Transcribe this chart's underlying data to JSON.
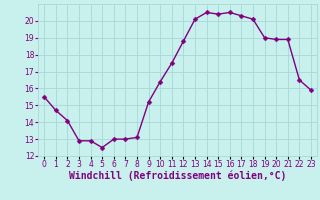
{
  "x": [
    0,
    1,
    2,
    3,
    4,
    5,
    6,
    7,
    8,
    9,
    10,
    11,
    12,
    13,
    14,
    15,
    16,
    17,
    18,
    19,
    20,
    21,
    22,
    23
  ],
  "y": [
    15.5,
    14.7,
    14.1,
    12.9,
    12.9,
    12.5,
    13.0,
    13.0,
    13.1,
    15.2,
    16.4,
    17.5,
    18.8,
    20.1,
    20.5,
    20.4,
    20.5,
    20.3,
    20.1,
    19.0,
    18.9,
    18.9,
    16.5,
    15.9
  ],
  "line_color": "#800080",
  "marker_color": "#800080",
  "bg_color": "#c8f0ec",
  "grid_color": "#a8d8d8",
  "xlabel": "Windchill (Refroidissement éolien,°C)",
  "xlabel_color": "#800080",
  "ylim": [
    12,
    21
  ],
  "xlim": [
    -0.5,
    23.5
  ],
  "yticks": [
    12,
    13,
    14,
    15,
    16,
    17,
    18,
    19,
    20
  ],
  "xtick_labels": [
    "0",
    "1",
    "2",
    "3",
    "4",
    "5",
    "6",
    "7",
    "8",
    "9",
    "10",
    "11",
    "12",
    "13",
    "14",
    "15",
    "16",
    "17",
    "18",
    "19",
    "20",
    "21",
    "22",
    "23"
  ],
  "tick_color": "#800080",
  "tick_fontsize": 5.5,
  "xlabel_fontsize": 7.0,
  "line_width": 1.0,
  "marker_size": 2.5
}
